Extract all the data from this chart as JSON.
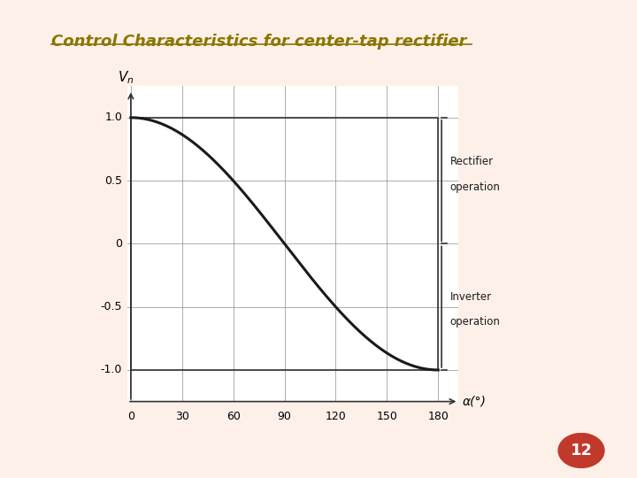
{
  "title": "Control Characteristics for center-tap rectifier",
  "title_color": "#8B7500",
  "title_fontsize": 13,
  "xlabel": "α(°)",
  "ylabel": "V_n",
  "xlim": [
    -2,
    192
  ],
  "ylim": [
    -1.25,
    1.25
  ],
  "xticks": [
    0,
    30,
    60,
    90,
    120,
    150,
    180
  ],
  "yticks": [
    -1.0,
    -0.5,
    0,
    0.5,
    1.0
  ],
  "grid_color": "#888888",
  "curve_color": "#1a1a1a",
  "background_color": "#ffffff",
  "slide_bg": "#fdf0e8",
  "rectifier_label1": "Rectifier",
  "rectifier_label2": "operation",
  "inverter_label1": "Inverter",
  "inverter_label2": "operation",
  "badge_color": "#c0392b",
  "badge_text": "12",
  "badge_text_color": "#ffffff"
}
